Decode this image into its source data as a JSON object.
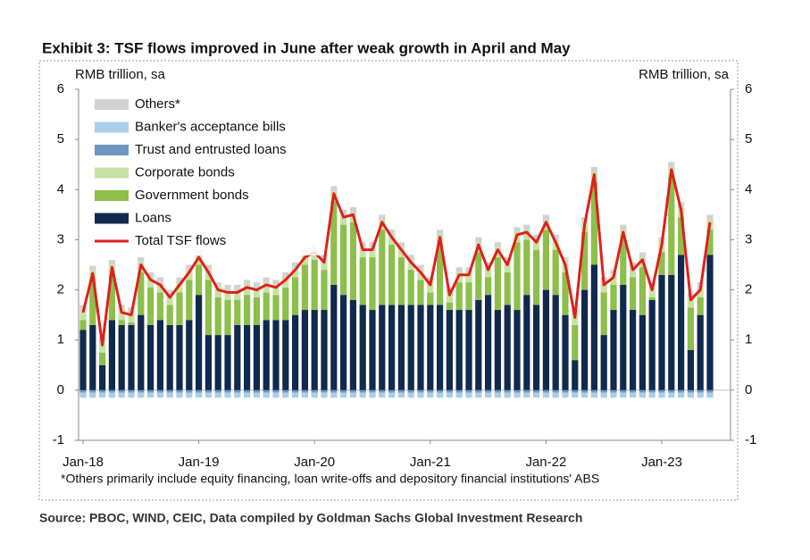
{
  "chart_data": {
    "type": "stacked_bar_line",
    "title": "Exhibit 3: TSF flows improved in June after weak growth in April and May",
    "y_label": "RMB trillion, sa",
    "y2_label": "RMB trillion, sa",
    "footnote": "*Others primarily include equity financing, loan write-offs and depository financial institutions' ABS",
    "source": "Source: PBOC, WIND, CEIC, Data compiled by Goldman Sachs Global Investment Research",
    "categories": [
      "Jan-18",
      null,
      null,
      null,
      null,
      null,
      null,
      null,
      null,
      null,
      null,
      null,
      "Jan-19",
      null,
      null,
      null,
      null,
      null,
      null,
      null,
      null,
      null,
      null,
      null,
      "Jan-20",
      null,
      null,
      null,
      null,
      null,
      null,
      null,
      null,
      null,
      null,
      null,
      "Jan-21",
      null,
      null,
      null,
      null,
      null,
      null,
      null,
      null,
      null,
      null,
      null,
      "Jan-22",
      null,
      null,
      null,
      null,
      null,
      null,
      null,
      null,
      null,
      null,
      null,
      "Jan-23",
      null,
      null,
      null,
      null,
      null
    ],
    "ylim": [
      -1,
      6
    ],
    "yticks": [
      -1,
      0,
      1,
      2,
      3,
      4,
      5,
      6
    ],
    "y2lim": [
      -1,
      6
    ],
    "y2ticks": [
      -1,
      0,
      1,
      2,
      3,
      4,
      5,
      6
    ],
    "legend": "upper left",
    "series": [
      {
        "name": "Loans",
        "color": "#10294d",
        "values": [
          1.2,
          1.3,
          0.5,
          1.4,
          1.3,
          1.3,
          1.5,
          1.3,
          1.4,
          1.3,
          1.3,
          1.4,
          1.9,
          1.1,
          1.1,
          1.1,
          1.3,
          1.3,
          1.3,
          1.4,
          1.4,
          1.4,
          1.5,
          1.6,
          1.6,
          1.6,
          2.1,
          1.9,
          1.8,
          1.7,
          1.6,
          1.7,
          1.7,
          1.7,
          1.7,
          1.7,
          1.7,
          1.7,
          1.6,
          1.6,
          1.6,
          1.8,
          1.9,
          1.6,
          1.7,
          1.6,
          1.9,
          1.7,
          2.0,
          1.9,
          1.5,
          0.6,
          2.0,
          2.5,
          1.1,
          1.6,
          2.1,
          1.6,
          1.5,
          1.8,
          2.3,
          2.3,
          2.7,
          0.8,
          1.5,
          2.7
        ]
      },
      {
        "name": "Government bonds",
        "color": "#8dbf4c",
        "values": [
          0.2,
          0.88,
          0.25,
          0.9,
          0.1,
          0.05,
          0.85,
          0.75,
          0.55,
          0.4,
          0.65,
          0.8,
          0.6,
          1.1,
          0.75,
          0.7,
          0.5,
          0.6,
          0.55,
          0.55,
          0.5,
          0.65,
          0.75,
          0.9,
          1.0,
          0.8,
          1.67,
          1.4,
          1.55,
          0.95,
          1.05,
          1.5,
          1.2,
          0.95,
          0.7,
          0.5,
          0.25,
          1.2,
          0.15,
          0.55,
          0.55,
          0.95,
          0.35,
          1.05,
          0.65,
          1.35,
          1.1,
          1.1,
          1.2,
          0.9,
          0.85,
          0.7,
          1.15,
          1.65,
          0.85,
          0.5,
          0.9,
          0.65,
          0.95,
          0.05,
          0.45,
          1.95,
          0.75,
          0.85,
          0.35,
          0.5
        ]
      },
      {
        "name": "Corporate bonds",
        "color": "#c8e2a6",
        "values": [
          0.2,
          0.2,
          0.2,
          0.2,
          0.2,
          0.2,
          0.2,
          0.2,
          0.2,
          0.2,
          0.2,
          0.2,
          0.2,
          0.2,
          0.2,
          0.2,
          0.2,
          0.2,
          0.2,
          0.2,
          0.2,
          0.2,
          0.2,
          0.2,
          0.2,
          0.2,
          0.2,
          0.2,
          0.2,
          0.2,
          0.2,
          0.2,
          0.2,
          0.2,
          0.2,
          0.2,
          0.2,
          0.2,
          0.2,
          0.2,
          0.2,
          0.2,
          0.2,
          0.2,
          0.2,
          0.2,
          0.2,
          0.2,
          0.2,
          0.2,
          0.2,
          0.2,
          0.2,
          0.2,
          0.2,
          0.2,
          0.2,
          0.2,
          0.2,
          0.2,
          0.2,
          0.2,
          0.2,
          0.2,
          0.2,
          0.2
        ]
      },
      {
        "name": "Trust and entrusted loans",
        "color": "#6f96bf",
        "values": [
          -0.05,
          -0.05,
          -0.05,
          -0.05,
          -0.05,
          -0.05,
          -0.05,
          -0.05,
          -0.05,
          -0.05,
          -0.05,
          -0.05,
          -0.05,
          -0.05,
          -0.05,
          -0.05,
          -0.05,
          -0.05,
          -0.05,
          -0.05,
          -0.05,
          -0.05,
          -0.05,
          -0.05,
          -0.05,
          -0.05,
          -0.05,
          -0.05,
          -0.05,
          -0.05,
          -0.05,
          -0.05,
          -0.05,
          -0.05,
          -0.05,
          -0.05,
          -0.05,
          -0.05,
          -0.05,
          -0.05,
          -0.05,
          -0.05,
          -0.05,
          -0.05,
          -0.05,
          -0.05,
          -0.05,
          -0.05,
          -0.05,
          -0.05,
          -0.05,
          -0.05,
          -0.05,
          -0.05,
          -0.05,
          -0.05,
          -0.05,
          -0.05,
          -0.05,
          -0.05,
          -0.05,
          -0.05,
          -0.05,
          -0.05,
          -0.05,
          -0.05
        ]
      },
      {
        "name": "Banker's acceptance bills",
        "color": "#a9cfea",
        "values": [
          -0.1,
          -0.1,
          -0.1,
          -0.1,
          -0.1,
          -0.1,
          -0.1,
          -0.1,
          -0.1,
          -0.1,
          -0.1,
          -0.1,
          -0.1,
          -0.1,
          -0.1,
          -0.1,
          -0.1,
          -0.1,
          -0.1,
          -0.1,
          -0.1,
          -0.1,
          -0.1,
          -0.1,
          -0.1,
          -0.1,
          -0.1,
          -0.1,
          -0.1,
          -0.1,
          -0.1,
          -0.1,
          -0.1,
          -0.1,
          -0.1,
          -0.1,
          -0.1,
          -0.1,
          -0.1,
          -0.1,
          -0.1,
          -0.1,
          -0.1,
          -0.1,
          -0.1,
          -0.1,
          -0.1,
          -0.1,
          -0.1,
          -0.1,
          -0.1,
          -0.1,
          -0.1,
          -0.1,
          -0.1,
          -0.1,
          -0.1,
          -0.1,
          -0.1,
          -0.1,
          -0.1,
          -0.1,
          -0.1,
          -0.1,
          -0.1,
          -0.1
        ]
      },
      {
        "name": "Others*",
        "color": "#d2d2d2",
        "values": [
          0.1,
          0.1,
          0.1,
          0.1,
          0.1,
          0.1,
          0.1,
          0.1,
          0.1,
          0.1,
          0.1,
          0.1,
          0.1,
          0.1,
          0.1,
          0.1,
          0.1,
          0.1,
          0.1,
          0.1,
          0.1,
          0.1,
          0.1,
          0.1,
          0.1,
          0.1,
          0.1,
          0.1,
          0.1,
          0.1,
          0.1,
          0.1,
          0.1,
          0.1,
          0.1,
          0.1,
          0.1,
          0.1,
          0.1,
          0.1,
          0.1,
          0.1,
          0.1,
          0.1,
          0.1,
          0.1,
          0.1,
          0.1,
          0.1,
          0.1,
          0.1,
          0.1,
          0.1,
          0.1,
          0.1,
          0.1,
          0.1,
          0.1,
          0.1,
          0.1,
          0.1,
          0.1,
          0.1,
          0.1,
          0.1,
          0.1
        ]
      },
      {
        "name": "Total TSF flows",
        "color": "#e0201b",
        "kind": "line",
        "values": [
          1.55,
          2.33,
          0.9,
          2.45,
          1.55,
          1.5,
          2.5,
          2.2,
          2.1,
          1.85,
          2.1,
          2.35,
          2.65,
          2.35,
          2.0,
          1.95,
          1.95,
          2.05,
          2.0,
          2.1,
          2.05,
          2.2,
          2.4,
          2.65,
          2.75,
          2.55,
          3.92,
          3.45,
          3.5,
          2.8,
          2.8,
          3.35,
          3.05,
          2.8,
          2.55,
          2.35,
          2.1,
          3.05,
          1.9,
          2.3,
          2.3,
          2.9,
          2.4,
          2.8,
          2.5,
          3.1,
          3.15,
          2.95,
          3.35,
          2.95,
          2.5,
          1.45,
          3.3,
          4.3,
          2.1,
          2.25,
          3.15,
          2.4,
          2.6,
          2.0,
          2.9,
          4.4,
          3.6,
          1.8,
          2.0,
          3.35
        ]
      }
    ]
  }
}
